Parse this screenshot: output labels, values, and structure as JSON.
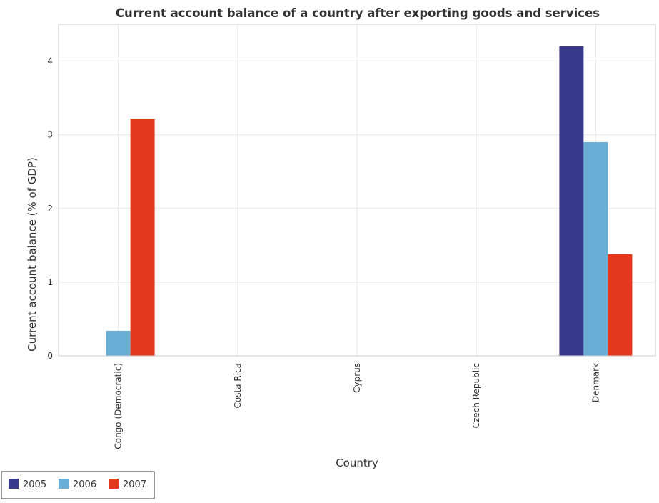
{
  "chart_data": {
    "type": "bar",
    "title": "Current account balance of a country after exporting goods and services",
    "xlabel": "Country",
    "ylabel": "Current account balance (% of GDP)",
    "categories": [
      "Congo (Democratic)",
      "Costa Rica",
      "Cyprus",
      "Czech Republic",
      "Denmark"
    ],
    "series": [
      {
        "name": "2005",
        "color": "#3a3a8c",
        "values": [
          0,
          0,
          0,
          0,
          4.2
        ]
      },
      {
        "name": "2006",
        "color": "#6aaed6",
        "values": [
          0.34,
          0,
          0,
          0,
          2.9
        ]
      },
      {
        "name": "2007",
        "color": "#e3371e",
        "values": [
          3.22,
          0,
          0,
          0,
          1.38
        ]
      }
    ],
    "ylim": [
      0,
      4.5
    ],
    "yticks": [
      0,
      1,
      2,
      3,
      4
    ],
    "grid": true,
    "legend_position": "bottom-left"
  }
}
